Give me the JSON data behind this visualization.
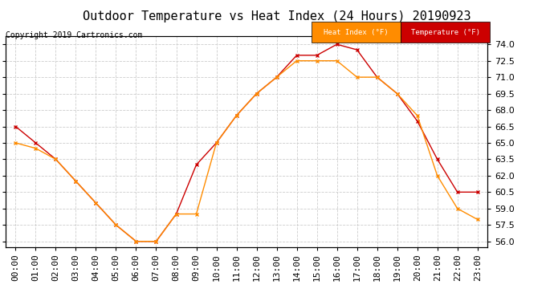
{
  "title": "Outdoor Temperature vs Heat Index (24 Hours) 20190923",
  "copyright": "Copyright 2019 Cartronics.com",
  "hours": [
    "00:00",
    "01:00",
    "02:00",
    "03:00",
    "04:00",
    "05:00",
    "06:00",
    "07:00",
    "08:00",
    "09:00",
    "10:00",
    "11:00",
    "12:00",
    "13:00",
    "14:00",
    "15:00",
    "16:00",
    "17:00",
    "18:00",
    "19:00",
    "20:00",
    "21:00",
    "22:00",
    "23:00"
  ],
  "temperature": [
    66.5,
    65.0,
    63.5,
    61.5,
    59.5,
    57.5,
    56.0,
    56.0,
    58.5,
    63.0,
    65.0,
    67.5,
    69.5,
    71.0,
    73.0,
    73.0,
    74.0,
    73.5,
    71.0,
    69.5,
    67.0,
    63.5,
    60.5,
    60.5
  ],
  "heat_index": [
    65.0,
    64.5,
    63.5,
    61.5,
    59.5,
    57.5,
    56.0,
    56.0,
    58.5,
    58.5,
    65.0,
    67.5,
    69.5,
    71.0,
    72.5,
    72.5,
    72.5,
    71.0,
    71.0,
    69.5,
    67.5,
    62.0,
    59.0,
    58.0
  ],
  "temp_color": "#cc0000",
  "heat_color": "#ff8c00",
  "ylim_min": 55.5,
  "ylim_max": 74.75,
  "yticks": [
    56.0,
    57.5,
    59.0,
    60.5,
    62.0,
    63.5,
    65.0,
    66.5,
    68.0,
    69.5,
    71.0,
    72.5,
    74.0
  ],
  "background_color": "#ffffff",
  "plot_bg_color": "#ffffff",
  "grid_color": "#cccccc",
  "legend_heat_bg": "#ff8c00",
  "legend_temp_bg": "#cc0000",
  "legend_text_color": "#ffffff",
  "title_fontsize": 11,
  "tick_fontsize": 8,
  "copyright_fontsize": 7
}
